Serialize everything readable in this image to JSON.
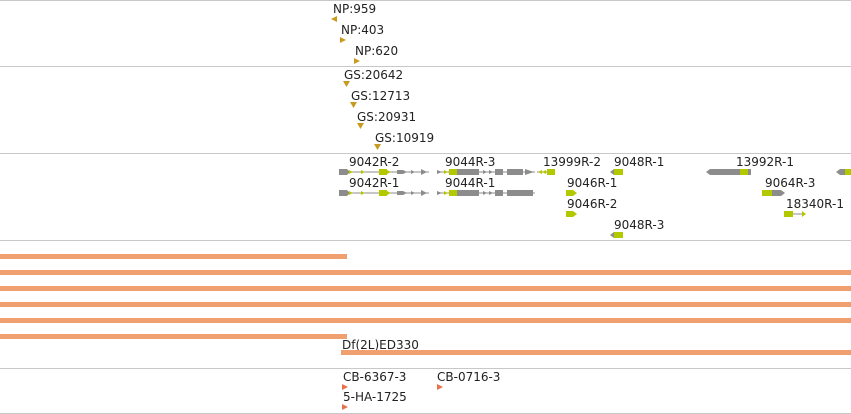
{
  "colors": {
    "track_divider": "#c8c8c8",
    "marker_gold": "#c89a1e",
    "marker_orange_red": "#e8704a",
    "gene_gray": "#8c8c8c",
    "exon_lime": "#b4c800",
    "deficiency_bar": "#f0a070"
  },
  "tracks": {
    "np_insertions": [
      {
        "label": "NP:959",
        "icon": "triangle-left-icon"
      },
      {
        "label": "NP:403",
        "icon": "triangle-right-icon"
      },
      {
        "label": "NP:620",
        "icon": "triangle-right-icon"
      }
    ],
    "gs_insertions": [
      {
        "label": "GS:20642",
        "icon": "triangle-down-icon"
      },
      {
        "label": "GS:12713",
        "icon": "triangle-down-icon"
      },
      {
        "label": "GS:20931",
        "icon": "triangle-down-icon"
      },
      {
        "label": "GS:10919",
        "icon": "triangle-down-icon"
      }
    ],
    "transcripts": [
      {
        "label": "9042R-2"
      },
      {
        "label": "9042R-1"
      },
      {
        "label": "9044R-3"
      },
      {
        "label": "9044R-1"
      },
      {
        "label": "13999R-2"
      },
      {
        "label": "9048R-1"
      },
      {
        "label": "9046R-1"
      },
      {
        "label": "9046R-2"
      },
      {
        "label": "9048R-3"
      },
      {
        "label": "13992R-1"
      },
      {
        "label": "9064R-3"
      },
      {
        "label": "18340R-1"
      }
    ],
    "deficiencies": {
      "label": "Df(2L)ED330"
    },
    "other_insertions": [
      {
        "label": "CB-6367-3",
        "icon": "triangle-right-icon"
      },
      {
        "label": "CB-0716-3",
        "icon": "triangle-right-icon"
      },
      {
        "label": "5-HA-1725",
        "icon": "triangle-right-icon"
      }
    ]
  }
}
